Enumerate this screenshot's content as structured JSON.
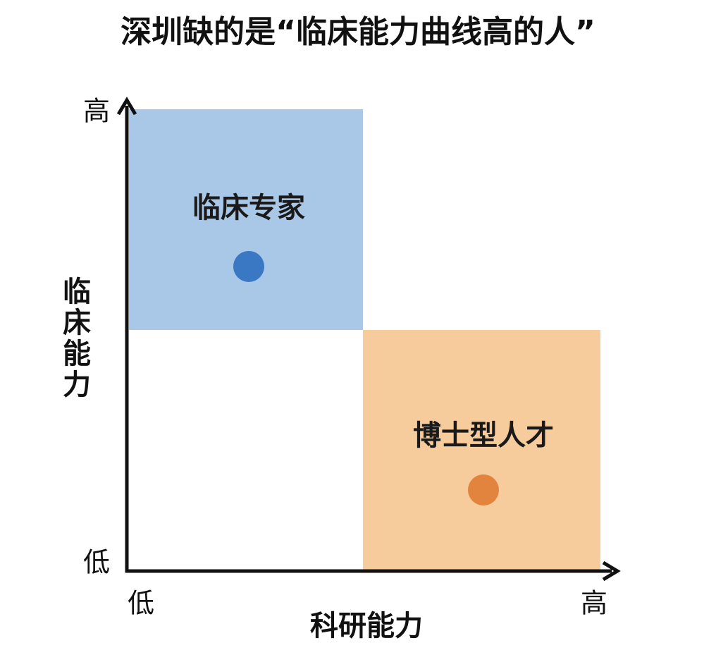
{
  "title": "深圳缺的是“临床能力曲线高的人”",
  "y_axis": {
    "label": "临床能力",
    "high": "高",
    "low": "低"
  },
  "x_axis": {
    "label": "科研能力",
    "low": "低",
    "high": "高"
  },
  "quadrants": [
    {
      "label": "临床专家"
    },
    {
      "label": "博士型人才"
    }
  ]
}
